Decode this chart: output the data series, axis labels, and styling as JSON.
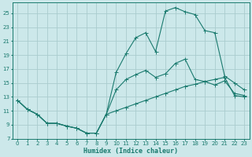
{
  "xlabel": "Humidex (Indice chaleur)",
  "bg_color": "#cce8ea",
  "grid_color": "#aaccce",
  "line_color": "#1a7a6e",
  "xlim": [
    -0.5,
    23.5
  ],
  "ylim": [
    7,
    26.5
  ],
  "yticks": [
    7,
    9,
    11,
    13,
    15,
    17,
    19,
    21,
    23,
    25
  ],
  "xticks": [
    0,
    1,
    2,
    3,
    4,
    5,
    6,
    7,
    8,
    9,
    10,
    11,
    12,
    13,
    14,
    15,
    16,
    17,
    18,
    19,
    20,
    21,
    22,
    23
  ],
  "curve_top_x": [
    0,
    1,
    2,
    3,
    4,
    5,
    6,
    7,
    8,
    9,
    10,
    11,
    12,
    13,
    14,
    15,
    16,
    17,
    18,
    19,
    20,
    21,
    22,
    23
  ],
  "curve_top_y": [
    12.5,
    11.2,
    10.5,
    9.2,
    9.2,
    8.8,
    8.5,
    7.8,
    7.8,
    10.5,
    16.5,
    19.2,
    21.5,
    22.2,
    19.5,
    25.3,
    25.8,
    25.2,
    24.8,
    22.5,
    22.2,
    16.0,
    15.0,
    14.0
  ],
  "curve_mid_x": [
    0,
    1,
    2,
    3,
    4,
    5,
    6,
    7,
    8,
    9,
    10,
    11,
    12,
    13,
    14,
    15,
    16,
    17,
    18,
    19,
    20,
    21,
    22,
    23
  ],
  "curve_mid_y": [
    12.5,
    11.2,
    10.5,
    9.2,
    9.2,
    8.8,
    8.5,
    7.8,
    7.8,
    10.5,
    14.0,
    15.5,
    16.2,
    16.8,
    15.8,
    16.3,
    17.8,
    18.4,
    15.5,
    15.2,
    14.7,
    15.3,
    13.5,
    13.2
  ],
  "curve_bot_x": [
    0,
    1,
    2,
    3,
    4,
    5,
    6,
    7,
    8,
    9,
    10,
    11,
    12,
    13,
    14,
    15,
    16,
    17,
    18,
    19,
    20,
    21,
    22,
    23
  ],
  "curve_bot_y": [
    12.5,
    11.2,
    10.5,
    9.2,
    9.2,
    8.8,
    8.5,
    7.8,
    7.8,
    10.5,
    11.0,
    11.5,
    12.0,
    12.5,
    13.0,
    13.5,
    14.0,
    14.5,
    14.8,
    15.2,
    15.5,
    15.8,
    13.2,
    13.0
  ]
}
